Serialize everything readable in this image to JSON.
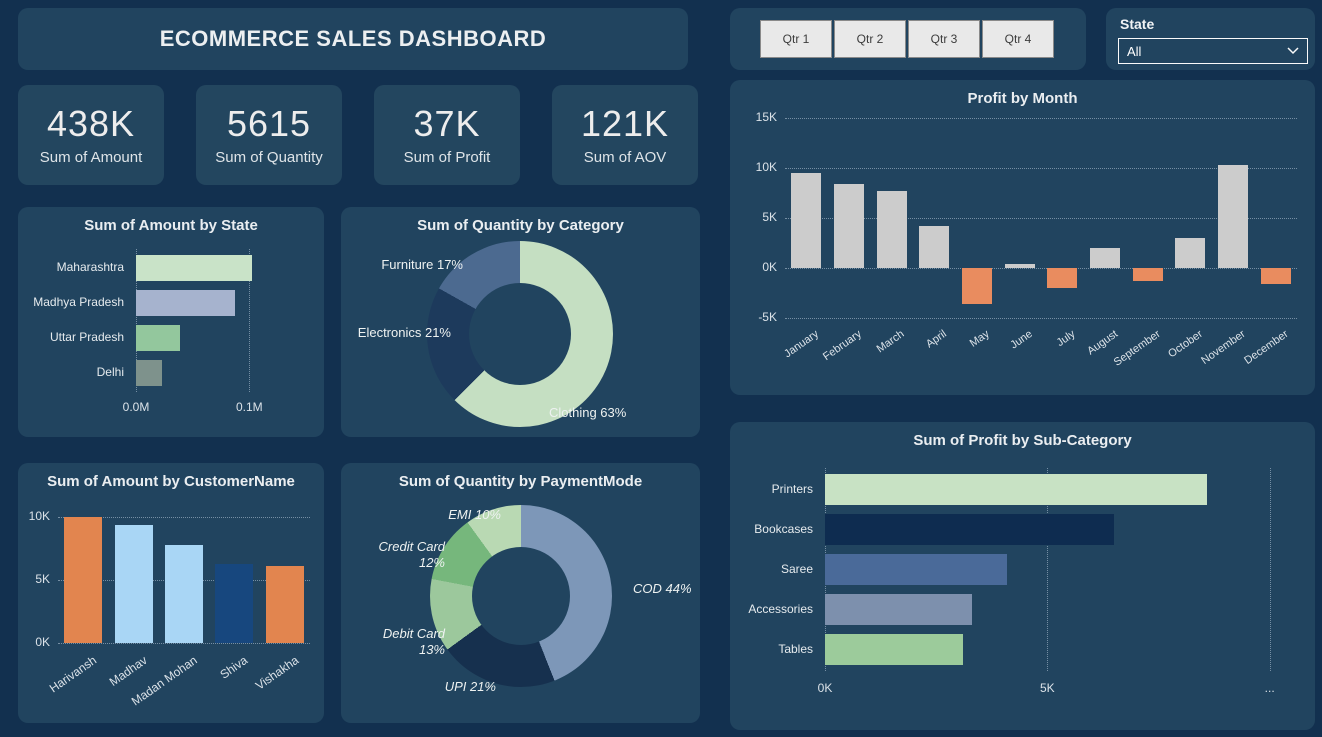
{
  "header": {
    "title": "ECOMMERCE SALES DASHBOARD"
  },
  "filters": {
    "quarters": [
      {
        "label": "Qtr 1"
      },
      {
        "label": "Qtr 2"
      },
      {
        "label": "Qtr 3"
      },
      {
        "label": "Qtr 4"
      }
    ],
    "state": {
      "label": "State",
      "selected": "All"
    }
  },
  "kpis": [
    {
      "value": "438K",
      "label": "Sum of Amount"
    },
    {
      "value": "5615",
      "label": "Sum of Quantity"
    },
    {
      "value": "37K",
      "label": "Sum of Profit"
    },
    {
      "value": "121K",
      "label": "Sum of AOV"
    }
  ],
  "colors": {
    "page_bg": "#12304f",
    "panel_bg": "#21445f",
    "positive_bar": "#cccccc",
    "negative_bar": "#e98c5f"
  },
  "chart_data": [
    {
      "id": "amount_by_state",
      "type": "bar",
      "orientation": "horizontal",
      "title": "Sum of Amount by State",
      "categories": [
        "Maharashtra",
        "Madhya Pradesh",
        "Uttar Pradesh",
        "Delhi"
      ],
      "values": [
        0.102,
        0.087,
        0.039,
        0.023
      ],
      "value_unit": "M",
      "xlim": [
        0,
        0.15
      ],
      "x_ticks": [
        {
          "value": 0,
          "label": "0.0M"
        },
        {
          "value": 0.1,
          "label": "0.1M"
        }
      ],
      "bar_colors": [
        "#c9e3c8",
        "#a6b3ce",
        "#93c79d",
        "#7e928c"
      ]
    },
    {
      "id": "quantity_by_category",
      "type": "donut",
      "title": "Sum of Quantity by Category",
      "slices": [
        {
          "label": "Clothing",
          "pct": 63,
          "color": "#c5dfc2"
        },
        {
          "label": "Electronics",
          "pct": 21,
          "color": "#1d3a5c"
        },
        {
          "label": "Furniture",
          "pct": 17,
          "color": "#4c6a90"
        }
      ]
    },
    {
      "id": "profit_by_month",
      "type": "bar",
      "orientation": "vertical",
      "title": "Profit by Month",
      "categories": [
        "January",
        "February",
        "March",
        "April",
        "May",
        "June",
        "July",
        "August",
        "September",
        "October",
        "November",
        "December"
      ],
      "values": [
        9.5,
        8.4,
        7.7,
        4.2,
        -3.6,
        0.4,
        -2.0,
        2.0,
        -1.3,
        3.0,
        10.3,
        -1.6
      ],
      "value_unit": "K",
      "ylim": [
        -5,
        15
      ],
      "y_ticks": [
        {
          "value": 15,
          "label": "15K"
        },
        {
          "value": 10,
          "label": "10K"
        },
        {
          "value": 5,
          "label": "5K"
        },
        {
          "value": 0,
          "label": "0K"
        },
        {
          "value": -5,
          "label": "-5K"
        }
      ],
      "positive_color": "#cccccc",
      "negative_color": "#e98c5f"
    },
    {
      "id": "amount_by_customer",
      "type": "bar",
      "orientation": "vertical",
      "title": "Sum of Amount by CustomerName",
      "categories": [
        "Harivansh",
        "Madhav",
        "Madan Mohan",
        "Shiva",
        "Vishakha"
      ],
      "values": [
        10,
        9.4,
        7.8,
        6.3,
        6.1
      ],
      "value_unit": "K",
      "ylim": [
        0,
        10.8
      ],
      "y_ticks": [
        {
          "value": 10,
          "label": "10K"
        },
        {
          "value": 5,
          "label": "5K"
        },
        {
          "value": 0,
          "label": "0K"
        }
      ],
      "bar_colors": [
        "#e2854f",
        "#a9d6f5",
        "#a9d6f5",
        "#17477e",
        "#e2854f"
      ]
    },
    {
      "id": "quantity_by_payment",
      "type": "donut",
      "title": "Sum of Quantity by PaymentMode",
      "slices": [
        {
          "label": "COD",
          "pct": 44,
          "color": "#7d97b8"
        },
        {
          "label": "UPI",
          "pct": 21,
          "color": "#16304e"
        },
        {
          "label": "Debit Card",
          "pct": 13,
          "color": "#9cc89c"
        },
        {
          "label": "Credit Card",
          "pct": 12,
          "color": "#76b77c"
        },
        {
          "label": "EMI",
          "pct": 10,
          "color": "#b9d9b3"
        }
      ]
    },
    {
      "id": "profit_by_subcategory",
      "type": "bar",
      "orientation": "horizontal",
      "title": "Sum of Profit by Sub-Category",
      "categories": [
        "Printers",
        "Bookcases",
        "Saree",
        "Accessories",
        "Tables"
      ],
      "values": [
        8.6,
        6.5,
        4.1,
        3.3,
        3.1
      ],
      "value_unit": "K",
      "xlim": [
        0,
        10.3
      ],
      "x_ticks": [
        {
          "value": 0,
          "label": "0K"
        },
        {
          "value": 5,
          "label": "5K"
        },
        {
          "value": 10,
          "label": "..."
        }
      ],
      "bar_colors": [
        "#c8e2c4",
        "#0e2c50",
        "#4a6a99",
        "#7d90ad",
        "#9ccb9b"
      ]
    }
  ]
}
